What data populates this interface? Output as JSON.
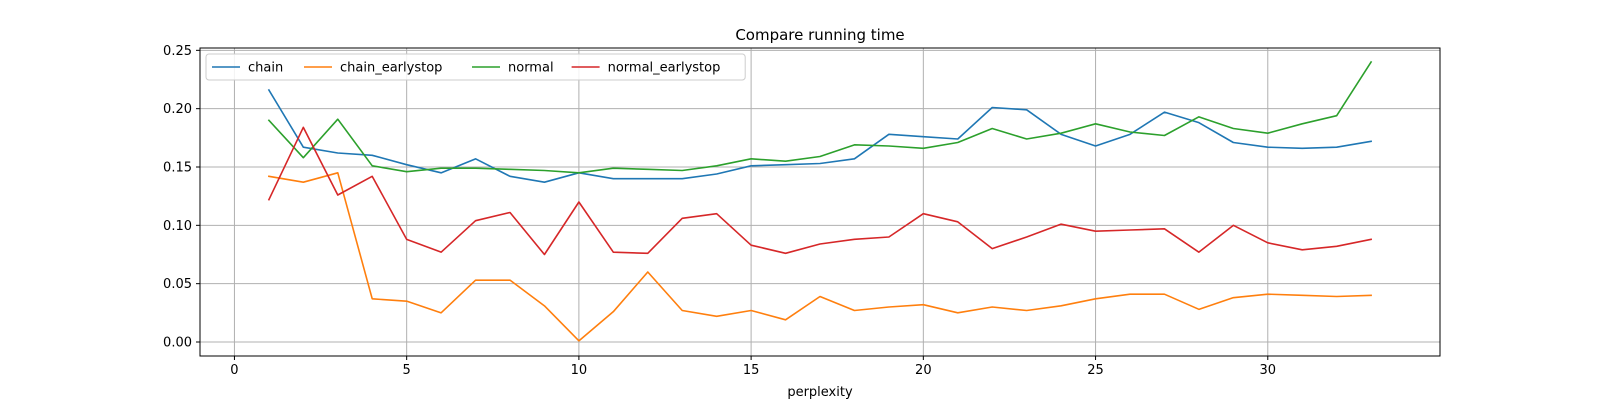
{
  "chart_data": {
    "type": "line",
    "title": "Compare running time",
    "xlabel": "perplexity",
    "ylabel": "",
    "xlim": [
      -1,
      35
    ],
    "ylim": [
      -0.012,
      0.252
    ],
    "xticks": [
      0,
      5,
      10,
      15,
      20,
      25,
      30
    ],
    "yticks": [
      0.0,
      0.05,
      0.1,
      0.15,
      0.2,
      0.25
    ],
    "ytick_labels": [
      "0.00",
      "0.05",
      "0.10",
      "0.15",
      "0.20",
      "0.25"
    ],
    "grid": true,
    "legend": {
      "placement": "top-left",
      "columns": 4
    },
    "x": [
      1,
      2,
      3,
      4,
      5,
      6,
      7,
      8,
      9,
      10,
      11,
      12,
      13,
      14,
      15,
      16,
      17,
      18,
      19,
      20,
      21,
      22,
      23,
      24,
      25,
      26,
      27,
      28,
      29,
      30,
      31,
      32,
      33
    ],
    "series": [
      {
        "name": "chain",
        "color": "#1f77b4",
        "values": [
          0.216,
          0.167,
          0.162,
          0.16,
          0.152,
          0.145,
          0.157,
          0.142,
          0.137,
          0.145,
          0.14,
          0.14,
          0.14,
          0.144,
          0.151,
          0.152,
          0.153,
          0.157,
          0.178,
          0.176,
          0.174,
          0.201,
          0.199,
          0.178,
          0.168,
          0.178,
          0.197,
          0.188,
          0.171,
          0.167,
          0.166,
          0.167,
          0.172
        ]
      },
      {
        "name": "chain_earlystop",
        "color": "#ff7f0e",
        "values": [
          0.142,
          0.137,
          0.145,
          0.037,
          0.035,
          0.025,
          0.053,
          0.053,
          0.031,
          0.001,
          0.026,
          0.06,
          0.027,
          0.022,
          0.027,
          0.019,
          0.039,
          0.027,
          0.03,
          0.032,
          0.025,
          0.03,
          0.027,
          0.031,
          0.037,
          0.041,
          0.041,
          0.028,
          0.038,
          0.041,
          0.04,
          0.039,
          0.04
        ]
      },
      {
        "name": "normal",
        "color": "#2ca02c",
        "values": [
          0.19,
          0.158,
          0.191,
          0.151,
          0.146,
          0.149,
          0.149,
          0.148,
          0.147,
          0.145,
          0.149,
          0.148,
          0.147,
          0.151,
          0.157,
          0.155,
          0.159,
          0.169,
          0.168,
          0.166,
          0.171,
          0.183,
          0.174,
          0.179,
          0.187,
          0.18,
          0.177,
          0.193,
          0.183,
          0.179,
          0.187,
          0.194,
          0.24
        ]
      },
      {
        "name": "normal_earlystop",
        "color": "#d62728",
        "values": [
          0.122,
          0.184,
          0.126,
          0.142,
          0.088,
          0.077,
          0.104,
          0.111,
          0.075,
          0.12,
          0.077,
          0.076,
          0.106,
          0.11,
          0.083,
          0.076,
          0.084,
          0.088,
          0.09,
          0.11,
          0.103,
          0.08,
          0.09,
          0.101,
          0.095,
          0.096,
          0.097,
          0.077,
          0.1,
          0.085,
          0.079,
          0.082,
          0.088
        ]
      }
    ]
  }
}
